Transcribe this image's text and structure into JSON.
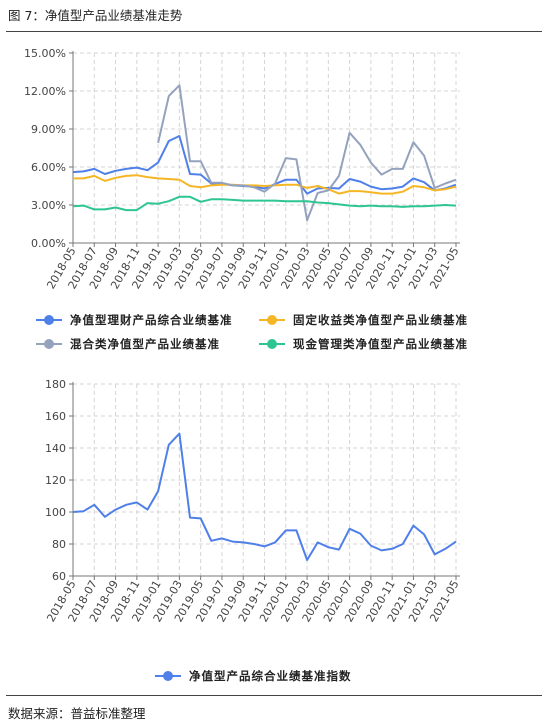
{
  "figure": {
    "title": "图 7：净值型产品业绩基准走势",
    "source": "数据来源：普益标准整理"
  },
  "colors": {
    "composite": "#4f7fe8",
    "fixed_income": "#f5b625",
    "mixed": "#95a2bd",
    "cash": "#2ec690",
    "grid": "#d4d4d4",
    "axis": "#777777"
  },
  "chart_data": [
    {
      "type": "line",
      "categories": [
        "2018-05",
        "2018-06",
        "2018-07",
        "2018-08",
        "2018-09",
        "2018-10",
        "2018-11",
        "2018-12",
        "2019-01",
        "2019-02",
        "2019-03",
        "2019-04",
        "2019-05",
        "2019-06",
        "2019-07",
        "2019-08",
        "2019-09",
        "2019-10",
        "2019-11",
        "2019-12",
        "2020-01",
        "2020-02",
        "2020-03",
        "2020-04",
        "2020-05",
        "2020-06",
        "2020-07",
        "2020-08",
        "2020-09",
        "2020-10",
        "2020-11",
        "2020-12",
        "2021-01",
        "2021-02",
        "2021-03",
        "2021-04",
        "2021-05"
      ],
      "tick_labels": [
        "2018-05",
        "2018-07",
        "2018-09",
        "2018-11",
        "2019-01",
        "2019-03",
        "2019-05",
        "2019-07",
        "2019-09",
        "2019-11",
        "2020-01",
        "2020-03",
        "2020-05",
        "2020-07",
        "2020-09",
        "2020-11",
        "2021-01",
        "2021-03",
        "2021-05"
      ],
      "y_ticks": [
        "0.00%",
        "3.00%",
        "6.00%",
        "9.00%",
        "12.00%",
        "15.00%"
      ],
      "ylim": [
        0,
        15
      ],
      "grid": true,
      "legend_position": "bottom",
      "series": [
        {
          "name": "净值型理财产品综合业绩基准",
          "color_key": "composite",
          "values": [
            5.6,
            5.65,
            5.85,
            5.45,
            5.7,
            5.85,
            5.95,
            5.75,
            6.35,
            8.05,
            8.45,
            5.45,
            5.4,
            4.7,
            4.7,
            4.55,
            4.5,
            4.45,
            4.3,
            4.65,
            5.0,
            5.0,
            3.9,
            4.3,
            4.35,
            4.3,
            5.05,
            4.85,
            4.45,
            4.25,
            4.3,
            4.45,
            5.1,
            4.8,
            4.15,
            4.3,
            4.6
          ]
        },
        {
          "name": "固定收益类净值型产品业绩基准",
          "color_key": "fixed_income",
          "values": [
            5.1,
            5.1,
            5.3,
            4.9,
            5.15,
            5.3,
            5.35,
            5.2,
            5.1,
            5.05,
            5.0,
            4.5,
            4.4,
            4.55,
            4.6,
            4.6,
            4.55,
            4.55,
            4.5,
            4.55,
            4.6,
            4.6,
            4.35,
            4.5,
            4.25,
            3.9,
            4.1,
            4.1,
            4.0,
            3.9,
            3.9,
            4.05,
            4.5,
            4.4,
            4.15,
            4.25,
            4.45
          ]
        },
        {
          "name": "混合类净值型产品业绩基准",
          "color_key": "mixed",
          "values": [
            null,
            null,
            null,
            null,
            null,
            null,
            null,
            null,
            7.9,
            11.6,
            12.45,
            6.45,
            6.45,
            4.75,
            4.75,
            4.55,
            4.55,
            4.4,
            4.05,
            4.7,
            6.7,
            6.6,
            1.8,
            3.95,
            4.15,
            5.3,
            8.7,
            7.75,
            6.35,
            5.4,
            5.85,
            5.85,
            7.95,
            6.9,
            4.35,
            4.7,
            5.0
          ]
        },
        {
          "name": "现金管理类净值型产品业绩基准",
          "color_key": "cash",
          "values": [
            2.9,
            2.95,
            2.65,
            2.65,
            2.8,
            2.6,
            2.6,
            3.15,
            3.1,
            3.3,
            3.65,
            3.65,
            3.25,
            3.45,
            3.45,
            3.4,
            3.35,
            3.35,
            3.35,
            3.35,
            3.3,
            3.3,
            3.3,
            3.2,
            3.15,
            3.05,
            2.95,
            2.9,
            2.95,
            2.9,
            2.9,
            2.85,
            2.9,
            2.9,
            2.95,
            3.0,
            2.95
          ]
        }
      ]
    },
    {
      "type": "line",
      "categories": [
        "2018-05",
        "2018-06",
        "2018-07",
        "2018-08",
        "2018-09",
        "2018-10",
        "2018-11",
        "2018-12",
        "2019-01",
        "2019-02",
        "2019-03",
        "2019-04",
        "2019-05",
        "2019-06",
        "2019-07",
        "2019-08",
        "2019-09",
        "2019-10",
        "2019-11",
        "2019-12",
        "2020-01",
        "2020-02",
        "2020-03",
        "2020-04",
        "2020-05",
        "2020-06",
        "2020-07",
        "2020-08",
        "2020-09",
        "2020-10",
        "2020-11",
        "2020-12",
        "2021-01",
        "2021-02",
        "2021-03",
        "2021-04",
        "2021-05"
      ],
      "tick_labels": [
        "2018-05",
        "2018-07",
        "2018-09",
        "2018-11",
        "2019-01",
        "2019-03",
        "2019-05",
        "2019-07",
        "2019-09",
        "2019-11",
        "2020-01",
        "2020-03",
        "2020-05",
        "2020-07",
        "2020-09",
        "2020-11",
        "2021-01",
        "2021-03",
        "2021-05"
      ],
      "y_ticks": [
        "60",
        "80",
        "100",
        "120",
        "140",
        "160",
        "180"
      ],
      "ylim": [
        60,
        180
      ],
      "grid": true,
      "legend_position": "bottom",
      "series": [
        {
          "name": "净值型产品综合业绩基准指数",
          "color_key": "composite",
          "values": [
            100,
            100.5,
            104.5,
            97,
            101.5,
            104.5,
            106,
            101.5,
            113,
            142,
            149,
            96.5,
            96,
            82,
            83.5,
            81.5,
            81,
            80,
            78.5,
            81,
            88.5,
            88.5,
            70,
            81,
            78,
            76.5,
            89.5,
            86.5,
            79,
            76,
            77,
            80,
            91.5,
            86,
            73.5,
            77,
            81.5
          ]
        }
      ]
    }
  ]
}
